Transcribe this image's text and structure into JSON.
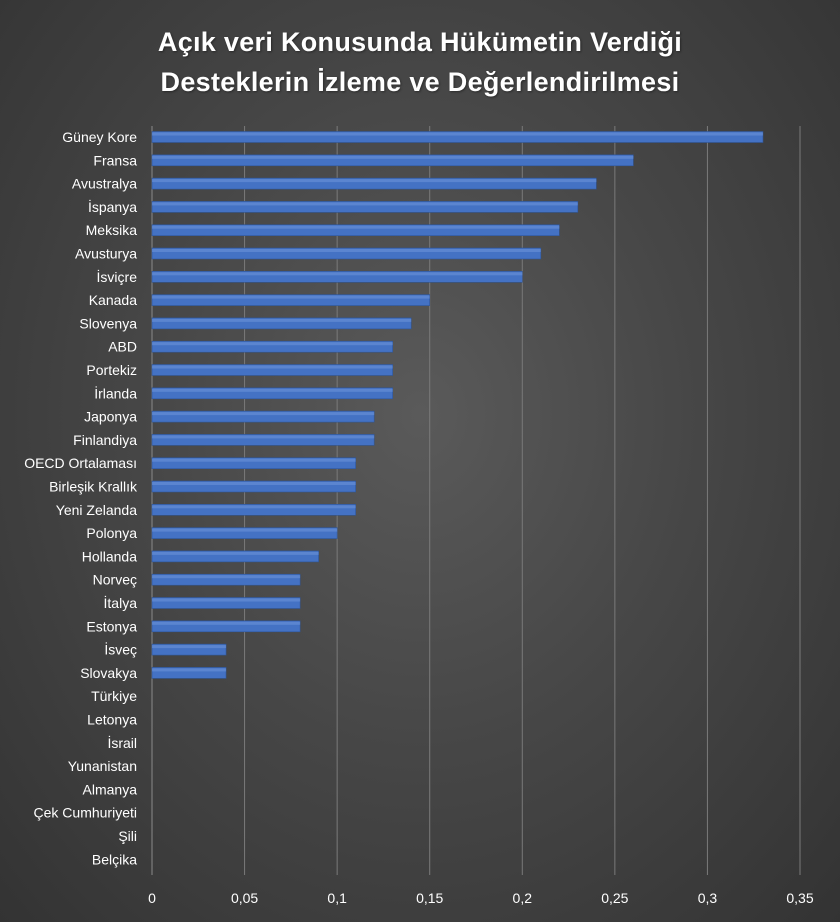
{
  "chart_data": {
    "type": "bar",
    "orientation": "horizontal",
    "title": [
      "Açık veri Konusunda Hükümetin Verdiği",
      "Desteklerin İzleme ve Değerlendirilmesi"
    ],
    "categories": [
      "Güney Kore",
      "Fransa",
      "Avustralya",
      "İspanya",
      "Meksika",
      "Avusturya",
      "İsviçre",
      "Kanada",
      "Slovenya",
      "ABD",
      "Portekiz",
      "İrlanda",
      "Japonya",
      "Finlandiya",
      "OECD Ortalaması",
      "Birleşik Krallık",
      "Yeni Zelanda",
      "Polonya",
      "Hollanda",
      "Norveç",
      "İtalya",
      "Estonya",
      "İsveç",
      "Slovakya",
      "Türkiye",
      "Letonya",
      "İsrail",
      "Yunanistan",
      "Almanya",
      "Çek Cumhuriyeti",
      "Şili",
      "Belçika"
    ],
    "values": [
      0.33,
      0.26,
      0.24,
      0.23,
      0.22,
      0.21,
      0.2,
      0.15,
      0.14,
      0.13,
      0.13,
      0.13,
      0.12,
      0.12,
      0.11,
      0.11,
      0.11,
      0.1,
      0.09,
      0.08,
      0.08,
      0.08,
      0.04,
      0.04,
      0,
      0,
      0,
      0,
      0,
      0,
      0,
      0
    ],
    "xticks": [
      0,
      0.05,
      0.1,
      0.15,
      0.2,
      0.25,
      0.3,
      0.35
    ],
    "xtick_labels": [
      "0",
      "0,05",
      "0,1",
      "0,15",
      "0,2",
      "0,25",
      "0,3",
      "0,35"
    ],
    "xlim": [
      0,
      0.35
    ],
    "grid": true,
    "xlabel": "",
    "ylabel": "",
    "bar_color": "#4472c4",
    "grid_color": "#7a7a7a"
  }
}
